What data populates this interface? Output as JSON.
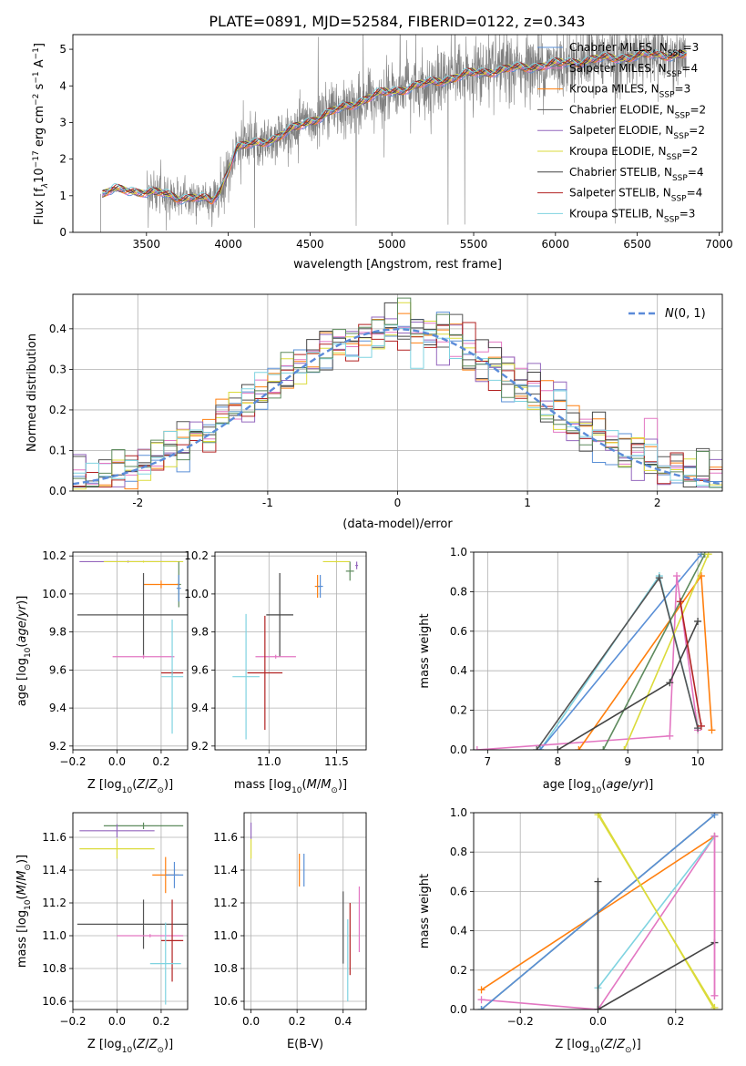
{
  "figure": {
    "title": "PLATE=0891, MJD=52584, FIBERID=0122, z=0.343"
  },
  "colors": {
    "chabrier_miles": "#5a8fd6",
    "salpeter_miles": "#e377c2",
    "kroupa_miles": "#ff7f0e",
    "chabrier_elodie": "#555555",
    "salpeter_elodie": "#9467bd",
    "kroupa_elodie": "#dbdb3b",
    "chabrier_stelib": "#444444",
    "salpeter_stelib": "#b22222",
    "kroupa_stelib": "#7fd3e0",
    "data": "#808080",
    "green_series": "#5d8a5d",
    "grid": "#b0b0b0"
  },
  "chart_data": [
    {
      "id": "spectrum",
      "type": "line",
      "xlabel": "wavelength [Angstrom, rest frame]",
      "ylabel": "Flux [f$_\\lambda$10$^{-17}$ erg cm$^{-2}$ s$^{-1}$ A$^{-1}$]",
      "ylabel_parts": {
        "a": "Flux [f",
        "b": "λ",
        "c": "10",
        "d": "−17",
        "e": " erg cm",
        "f": "−2",
        "g": " s",
        "h": "−1",
        "i": " A",
        "j": "−1",
        "k": "]"
      },
      "xlim": [
        3050,
        7020
      ],
      "ylim": [
        0,
        5.4
      ],
      "xticks": [
        3500,
        4000,
        4500,
        5000,
        5500,
        6000,
        6500,
        7000
      ],
      "yticks": [
        0,
        1,
        2,
        3,
        4,
        5
      ],
      "grid": false,
      "legend_position": "top-right",
      "continuum": [
        [
          3230,
          1.05
        ],
        [
          3300,
          1.15
        ],
        [
          3400,
          1.15
        ],
        [
          3500,
          1.1
        ],
        [
          3600,
          1.05
        ],
        [
          3700,
          0.95
        ],
        [
          3800,
          0.95
        ],
        [
          3900,
          0.85
        ],
        [
          3950,
          1.15
        ],
        [
          4050,
          2.3
        ],
        [
          4150,
          2.4
        ],
        [
          4300,
          2.6
        ],
        [
          4500,
          3.05
        ],
        [
          4700,
          3.4
        ],
        [
          4900,
          3.75
        ],
        [
          5100,
          3.95
        ],
        [
          5300,
          4.15
        ],
        [
          5500,
          4.35
        ],
        [
          5700,
          4.45
        ],
        [
          6000,
          4.6
        ],
        [
          6300,
          4.75
        ],
        [
          6600,
          4.85
        ],
        [
          6800,
          4.85
        ]
      ],
      "series": [
        {
          "name": "Chabrier MILES, N",
          "n": "3",
          "key": "chabrier_miles"
        },
        {
          "name": "Salpeter MILES, N",
          "n": "4",
          "key": "salpeter_miles"
        },
        {
          "name": "Kroupa MILES, N",
          "n": "3",
          "key": "kroupa_miles"
        },
        {
          "name": "Chabrier ELODIE, N",
          "n": "2",
          "key": "chabrier_elodie"
        },
        {
          "name": "Salpeter ELODIE, N",
          "n": "2",
          "key": "salpeter_elodie"
        },
        {
          "name": "Kroupa ELODIE, N",
          "n": "2",
          "key": "kroupa_elodie"
        },
        {
          "name": "Chabrier STELIB, N",
          "n": "4",
          "key": "chabrier_stelib"
        },
        {
          "name": "Salpeter STELIB, N",
          "n": "4",
          "key": "salpeter_stelib"
        },
        {
          "name": "Kroupa STELIB, N",
          "n": "3",
          "key": "kroupa_stelib"
        }
      ],
      "legend_sub": "SSP"
    },
    {
      "id": "residuals",
      "type": "line",
      "xlabel": "(data-model)/error",
      "ylabel": "Normed distribution",
      "xlim": [
        -2.5,
        2.5
      ],
      "ylim": [
        0,
        0.485
      ],
      "xticks": [
        -2,
        -1,
        0,
        1,
        2
      ],
      "yticks": [
        0.0,
        0.1,
        0.2,
        0.3,
        0.4
      ],
      "grid": true,
      "legend_label": "(0, 1)",
      "legend_prefix": "N",
      "legend_position": "top-right",
      "bin_width": 0.1
    },
    {
      "id": "age_vs_z",
      "type": "scatter",
      "xlabel": "Z [log$_{10}$(Z/Z$_\\odot$)]",
      "ylabel": "age  [log$_{10}$(age/yr)]",
      "xlim": [
        -0.2,
        0.32
      ],
      "ylim": [
        9.18,
        10.22
      ],
      "xticks": [
        -0.2,
        0.0,
        0.2
      ],
      "yticks": [
        9.2,
        9.4,
        9.6,
        9.8,
        10.0,
        10.2
      ],
      "grid": true,
      "points": [
        {
          "key": "salpeter_elodie",
          "x": 0.05,
          "y": 10.17,
          "xerr": 0.22,
          "yerr": 0.005
        },
        {
          "key": "kroupa_elodie",
          "x": 0.12,
          "y": 10.17,
          "xerr": 0.18,
          "yerr": 0.005
        },
        {
          "key": "green_series",
          "x": 0.28,
          "y": 10.05,
          "xerr": 0.01,
          "yerr": 0.12
        },
        {
          "key": "kroupa_miles",
          "x": 0.2,
          "y": 10.05,
          "xerr": 0.08,
          "yerr": 0.02
        },
        {
          "key": "chabrier_miles",
          "x": 0.28,
          "y": 10.03,
          "xerr": 0.01,
          "yerr": 0.07
        },
        {
          "key": "chabrier_elodie",
          "x": 0.12,
          "y": 9.89,
          "xerr": 0.3,
          "yerr": 0.22
        },
        {
          "key": "salpeter_miles",
          "x": 0.12,
          "y": 9.67,
          "xerr": 0.14,
          "yerr": 0.01
        },
        {
          "key": "salpeter_stelib",
          "x": 0.25,
          "y": 9.585,
          "xerr": 0.05,
          "yerr": 0.01
        },
        {
          "key": "kroupa_stelib",
          "x": 0.25,
          "y": 9.565,
          "xerr": 0.05,
          "yerr": 0.3
        }
      ]
    },
    {
      "id": "age_vs_mass",
      "type": "scatter",
      "xlabel": "mass [log$_{10}$(M/M$_\\odot$)]",
      "ylabel": "",
      "xlim": [
        10.6,
        11.72
      ],
      "ylim": [
        9.18,
        10.22
      ],
      "xticks": [
        11.0,
        11.5
      ],
      "yticks": [
        9.2,
        9.4,
        9.6,
        9.8,
        10.0,
        10.2
      ],
      "grid": true,
      "points": [
        {
          "key": "kroupa_elodie",
          "x": 11.5,
          "y": 10.17,
          "xerr": 0.1,
          "yerr": 0.005
        },
        {
          "key": "salpeter_elodie",
          "x": 11.65,
          "y": 10.15,
          "xerr": 0.01,
          "yerr": 0.02
        },
        {
          "key": "green_series",
          "x": 11.6,
          "y": 10.12,
          "xerr": 0.03,
          "yerr": 0.05
        },
        {
          "key": "kroupa_miles",
          "x": 11.36,
          "y": 10.04,
          "xerr": 0.02,
          "yerr": 0.06
        },
        {
          "key": "chabrier_miles",
          "x": 11.38,
          "y": 10.04,
          "xerr": 0.02,
          "yerr": 0.06
        },
        {
          "key": "chabrier_stelib",
          "x": 11.08,
          "y": 9.89,
          "xerr": 0.1,
          "yerr": 0.22
        },
        {
          "key": "salpeter_miles",
          "x": 11.05,
          "y": 9.67,
          "xerr": 0.15,
          "yerr": 0.01
        },
        {
          "key": "salpeter_stelib",
          "x": 10.97,
          "y": 9.585,
          "xerr": 0.13,
          "yerr": 0.3
        },
        {
          "key": "kroupa_stelib",
          "x": 10.83,
          "y": 9.565,
          "xerr": 0.1,
          "yerr": 0.33
        }
      ]
    },
    {
      "id": "weight_vs_age",
      "type": "line",
      "xlabel": "age  [log$_{10}$(age/yr)]",
      "ylabel": "mass weight",
      "xlim": [
        6.8,
        10.35
      ],
      "ylim": [
        0,
        1.0
      ],
      "xticks": [
        7,
        8,
        9,
        10
      ],
      "yticks": [
        0.0,
        0.2,
        0.4,
        0.6,
        0.8,
        1.0
      ],
      "grid": true,
      "series": [
        {
          "key": "kroupa_stelib",
          "x": [
            7.75,
            9.45,
            10.0
          ],
          "y": [
            0.0,
            0.88,
            0.11
          ]
        },
        {
          "key": "chabrier_miles",
          "x": [
            7.75,
            10.05
          ],
          "y": [
            0.0,
            0.99
          ]
        },
        {
          "key": "salpeter_miles",
          "x": [
            6.85,
            9.6,
            9.7,
            10.0
          ],
          "y": [
            0.0,
            0.07,
            0.88,
            0.1
          ]
        },
        {
          "key": "kroupa_miles",
          "x": [
            8.3,
            10.05,
            10.2
          ],
          "y": [
            0.0,
            0.88,
            0.1
          ]
        },
        {
          "key": "green_series",
          "x": [
            8.65,
            10.1
          ],
          "y": [
            0.0,
            0.99
          ]
        },
        {
          "key": "kroupa_elodie",
          "x": [
            8.95,
            10.15
          ],
          "y": [
            0.0,
            0.99
          ]
        },
        {
          "key": "chabrier_elodie",
          "x": [
            7.7,
            9.45,
            10.0
          ],
          "y": [
            0.0,
            0.87,
            0.11
          ]
        },
        {
          "key": "chabrier_stelib",
          "x": [
            8.0,
            9.6,
            10.0
          ],
          "y": [
            0.0,
            0.34,
            0.65
          ]
        },
        {
          "key": "salpeter_stelib",
          "x": [
            9.75,
            10.05
          ],
          "y": [
            0.75,
            0.12
          ]
        }
      ]
    },
    {
      "id": "mass_vs_z",
      "type": "scatter",
      "xlabel": "Z [log$_{10}$(Z/Z$_\\odot$)]",
      "ylabel": "mass [log$_{10}$(M/M$_\\odot$)]",
      "xlim": [
        -0.2,
        0.32
      ],
      "ylim": [
        10.55,
        11.75
      ],
      "xticks": [
        -0.2,
        0.0,
        0.2
      ],
      "yticks": [
        10.6,
        10.8,
        11.0,
        11.2,
        11.4,
        11.6
      ],
      "grid": true,
      "points": [
        {
          "key": "green_series",
          "x": 0.12,
          "y": 11.67,
          "xerr": 0.18,
          "yerr": 0.02
        },
        {
          "key": "salpeter_elodie",
          "x": 0.0,
          "y": 11.64,
          "xerr": 0.17,
          "yerr": 0.04
        },
        {
          "key": "kroupa_elodie",
          "x": 0.0,
          "y": 11.53,
          "xerr": 0.17,
          "yerr": 0.06
        },
        {
          "key": "kroupa_miles",
          "x": 0.22,
          "y": 11.37,
          "xerr": 0.06,
          "yerr": 0.11
        },
        {
          "key": "chabrier_miles",
          "x": 0.26,
          "y": 11.37,
          "xerr": 0.04,
          "yerr": 0.08
        },
        {
          "key": "chabrier_elodie",
          "x": 0.12,
          "y": 11.07,
          "xerr": 0.3,
          "yerr": 0.15
        },
        {
          "key": "salpeter_miles",
          "x": 0.15,
          "y": 11.0,
          "xerr": 0.15,
          "yerr": 0.01
        },
        {
          "key": "salpeter_stelib",
          "x": 0.25,
          "y": 10.97,
          "xerr": 0.05,
          "yerr": 0.25
        },
        {
          "key": "kroupa_stelib",
          "x": 0.22,
          "y": 10.83,
          "xerr": 0.07,
          "yerr": 0.25
        }
      ]
    },
    {
      "id": "mass_vs_ebv",
      "type": "scatter",
      "xlabel": "E(B-V)",
      "ylabel": "",
      "xlim": [
        -0.03,
        0.5
      ],
      "ylim": [
        10.55,
        11.75
      ],
      "xticks": [
        0.0,
        0.2,
        0.4
      ],
      "yticks": [
        10.6,
        10.8,
        11.0,
        11.2,
        11.4,
        11.6
      ],
      "grid": true,
      "points": [
        {
          "key": "salpeter_elodie",
          "x": 0.0,
          "y": 11.64,
          "xerr": 0.0,
          "yerr": 0.05
        },
        {
          "key": "kroupa_elodie",
          "x": 0.0,
          "y": 11.53,
          "xerr": 0.0,
          "yerr": 0.06
        },
        {
          "key": "kroupa_miles",
          "x": 0.21,
          "y": 11.4,
          "xerr": 0.0,
          "yerr": 0.1
        },
        {
          "key": "chabrier_miles",
          "x": 0.23,
          "y": 11.4,
          "xerr": 0.0,
          "yerr": 0.1
        },
        {
          "key": "chabrier_elodie",
          "x": 0.4,
          "y": 11.05,
          "xerr": 0.0,
          "yerr": 0.22
        },
        {
          "key": "salpeter_stelib",
          "x": 0.43,
          "y": 10.98,
          "xerr": 0.0,
          "yerr": 0.22
        },
        {
          "key": "kroupa_stelib",
          "x": 0.42,
          "y": 10.85,
          "xerr": 0.0,
          "yerr": 0.25
        },
        {
          "key": "salpeter_miles",
          "x": 0.47,
          "y": 11.1,
          "xerr": 0.0,
          "yerr": 0.2
        }
      ]
    },
    {
      "id": "weight_vs_z",
      "type": "line",
      "xlabel": "Z [log$_{10}$(Z/Z$_\\odot$)]",
      "ylabel": "mass weight",
      "xlim": [
        -0.32,
        0.32
      ],
      "ylim": [
        0,
        1.0
      ],
      "xticks": [
        -0.2,
        0.0,
        0.2
      ],
      "yticks": [
        0.0,
        0.2,
        0.4,
        0.6,
        0.8,
        1.0
      ],
      "grid": true,
      "series": [
        {
          "key": "salpeter_miles",
          "x": [
            -0.3,
            0.0,
            0.3,
            0.3
          ],
          "y": [
            0.05,
            0.0,
            0.88,
            0.07
          ]
        },
        {
          "key": "kroupa_miles",
          "x": [
            -0.3,
            0.3
          ],
          "y": [
            0.1,
            0.88
          ]
        },
        {
          "key": "green_series",
          "x": [
            -0.3,
            0.3
          ],
          "y": [
            0.0,
            0.99
          ]
        },
        {
          "key": "chabrier_miles",
          "x": [
            -0.3,
            0.3
          ],
          "y": [
            0.0,
            0.99
          ]
        },
        {
          "key": "kroupa_stelib",
          "x": [
            0.0,
            0.3
          ],
          "y": [
            0.11,
            0.88
          ]
        },
        {
          "key": "kroupa_elodie",
          "x": [
            0.0,
            0.3
          ],
          "y": [
            1.0,
            0.0
          ]
        },
        {
          "key": "kroupa_elodie",
          "x": [
            0.0,
            0.3
          ],
          "y": [
            0.99,
            0.01
          ]
        },
        {
          "key": "chabrier_stelib",
          "x": [
            0.0,
            0.0
          ],
          "y": [
            0.0,
            0.65
          ]
        },
        {
          "key": "chabrier_stelib",
          "x": [
            0.0,
            0.3
          ],
          "y": [
            0.0,
            0.34
          ]
        },
        {
          "key": "salpeter_miles",
          "x": [
            0.3,
            0.3
          ],
          "y": [
            0.88,
            0.07
          ]
        }
      ]
    }
  ]
}
